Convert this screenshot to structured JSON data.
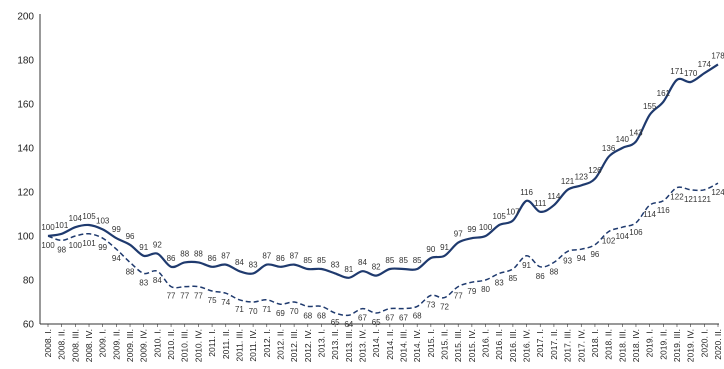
{
  "colors": {
    "series": "#1f3a6e",
    "axis": "#333333"
  },
  "chart_data": {
    "type": "line",
    "ylim": [
      60,
      200
    ],
    "yticks": [
      60,
      80,
      100,
      120,
      140,
      160,
      180,
      200
    ],
    "grid": false,
    "x": [
      "2008. I.",
      "2008. II.",
      "2008. III.",
      "2008. IV.",
      "2009. I.",
      "2009. II.",
      "2009. III.",
      "2009. IV.",
      "2010. I.",
      "2010. II.",
      "2010. III.",
      "2010. IV.",
      "2011. I.",
      "2011. II.",
      "2011. III.",
      "2011. IV.",
      "2012. I.",
      "2012. II.",
      "2012. III.",
      "2012. IV.",
      "2013. I.",
      "2013. II.",
      "2013. III.",
      "2013. IV.",
      "2014. I.",
      "2014. II.",
      "2014. III.",
      "2014. IV.",
      "2015. I.",
      "2015. II.",
      "2015. III.",
      "2015. IV.",
      "2016. I.",
      "2016. II.",
      "2016. III.",
      "2016. IV.",
      "2017. I.",
      "2017. II.",
      "2017. III.",
      "2017. IV.",
      "2018. I.",
      "2018. II.",
      "2018. III.",
      "2018. IV.",
      "2019. I.",
      "2019. II.",
      "2019. III.",
      "2019. IV.",
      "2020. I.",
      "2020. II."
    ],
    "series": [
      {
        "style": "solid",
        "values": [
          100,
          101,
          104,
          105,
          103,
          99,
          96,
          91,
          92,
          86,
          88,
          88,
          86,
          87,
          84,
          83,
          87,
          86,
          87,
          85,
          85,
          83,
          81,
          84,
          82,
          85,
          85,
          85,
          90,
          91,
          97,
          99,
          100,
          105,
          107,
          116,
          111,
          114,
          121,
          123,
          126,
          136,
          140,
          143,
          155,
          161,
          171,
          170,
          174,
          178
        ]
      },
      {
        "style": "dashed",
        "values": [
          100,
          98,
          100,
          101,
          99,
          94,
          88,
          83,
          84,
          77,
          77,
          77,
          75,
          74,
          71,
          70,
          71,
          69,
          70,
          68,
          68,
          65,
          64,
          67,
          65,
          67,
          67,
          68,
          73,
          72,
          77,
          79,
          80,
          83,
          85,
          91,
          86,
          88,
          93,
          94,
          96,
          102,
          104,
          106,
          114,
          116,
          122,
          121,
          121,
          124
        ]
      }
    ]
  }
}
